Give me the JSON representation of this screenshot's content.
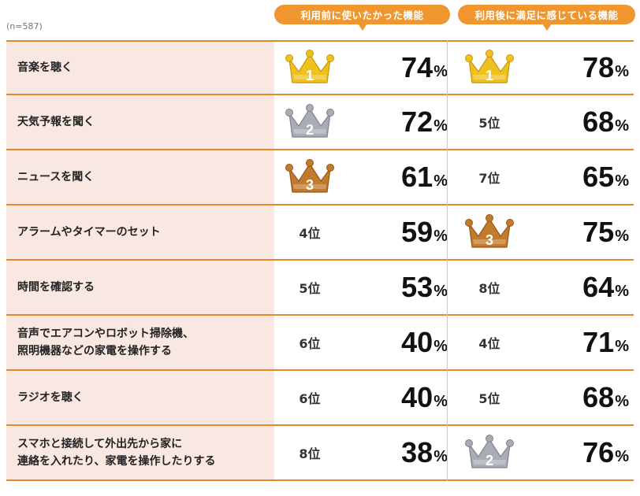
{
  "sample_note": "(n=587)",
  "colors": {
    "header": "#f0962e",
    "row_line": "#e48a2d",
    "feature_bg": "#f9e8e2",
    "gold": "#efc11e",
    "silver": "#a9acb5",
    "bronze": "#c27a2c"
  },
  "headers": {
    "before": "利用前に使いたかった機能",
    "after": "利用後に満足に感じている機能"
  },
  "chart_data": {
    "type": "table",
    "columns": [
      "利用前に使いたかった機能",
      "利用後に満足に感じている機能"
    ],
    "rows": [
      {
        "feature": "音楽を聴く",
        "before": {
          "rank": 1,
          "rank_label": "1",
          "pct": 74,
          "crown": "gold"
        },
        "after": {
          "rank": 1,
          "rank_label": "1",
          "pct": 78,
          "crown": "gold"
        }
      },
      {
        "feature": "天気予報を聞く",
        "before": {
          "rank": 2,
          "rank_label": "2",
          "pct": 72,
          "crown": "silver"
        },
        "after": {
          "rank": 5,
          "rank_label": "5位",
          "pct": 68,
          "crown": ""
        }
      },
      {
        "feature": "ニュースを聞く",
        "before": {
          "rank": 3,
          "rank_label": "3",
          "pct": 61,
          "crown": "bronze"
        },
        "after": {
          "rank": 7,
          "rank_label": "7位",
          "pct": 65,
          "crown": ""
        }
      },
      {
        "feature": "アラームやタイマーのセット",
        "before": {
          "rank": 4,
          "rank_label": "4位",
          "pct": 59,
          "crown": ""
        },
        "after": {
          "rank": 3,
          "rank_label": "3",
          "pct": 75,
          "crown": "bronze"
        }
      },
      {
        "feature": "時間を確認する",
        "before": {
          "rank": 5,
          "rank_label": "5位",
          "pct": 53,
          "crown": ""
        },
        "after": {
          "rank": 8,
          "rank_label": "8位",
          "pct": 64,
          "crown": ""
        }
      },
      {
        "feature": "音声でエアコンやロボット掃除機、\n照明機器などの家電を操作する",
        "before": {
          "rank": 6,
          "rank_label": "6位",
          "pct": 40,
          "crown": ""
        },
        "after": {
          "rank": 4,
          "rank_label": "4位",
          "pct": 71,
          "crown": ""
        }
      },
      {
        "feature": "ラジオを聴く",
        "before": {
          "rank": 6,
          "rank_label": "6位",
          "pct": 40,
          "crown": ""
        },
        "after": {
          "rank": 5,
          "rank_label": "5位",
          "pct": 68,
          "crown": ""
        }
      },
      {
        "feature": "スマホと接続して外出先から家に\n連絡を入れたり、家電を操作したりする",
        "before": {
          "rank": 8,
          "rank_label": "8位",
          "pct": 38,
          "crown": ""
        },
        "after": {
          "rank": 2,
          "rank_label": "2",
          "pct": 76,
          "crown": "silver"
        }
      }
    ],
    "unit": "%"
  }
}
